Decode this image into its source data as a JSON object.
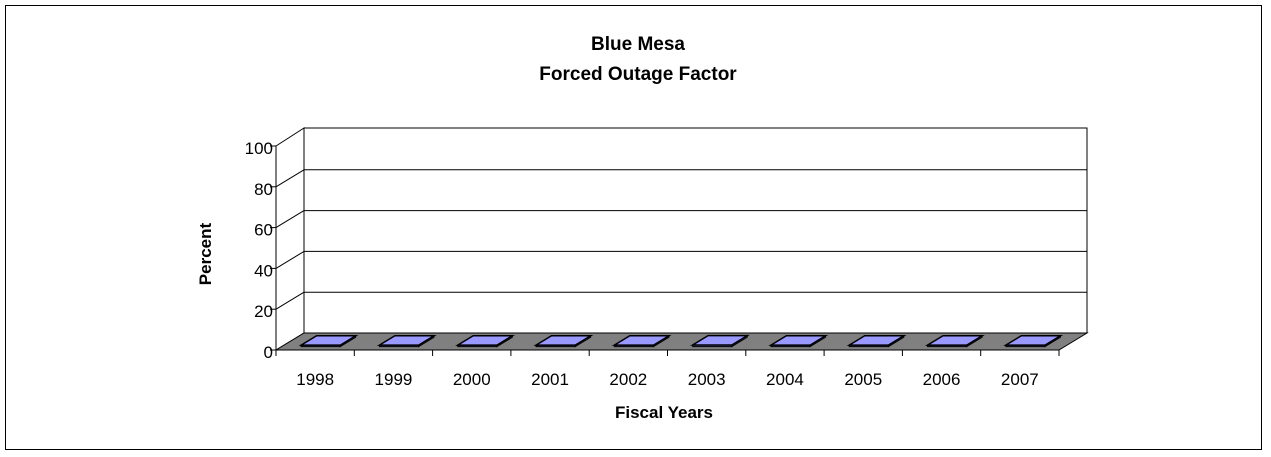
{
  "chart_data": {
    "type": "bar",
    "title_lines": [
      "Blue Mesa",
      "Forced Outage Factor"
    ],
    "xlabel": "Fiscal Years",
    "ylabel": "Percent",
    "categories": [
      "1998",
      "1999",
      "2000",
      "2001",
      "2002",
      "2003",
      "2004",
      "2005",
      "2006",
      "2007"
    ],
    "series": [
      {
        "values": [
          0.2,
          0.2,
          0.2,
          0.2,
          0.2,
          0.8,
          0.3,
          0.3,
          0.2,
          0.2
        ]
      }
    ],
    "ylim": [
      0,
      100
    ],
    "yticks": [
      "0",
      "20",
      "40",
      "60",
      "80",
      "100"
    ],
    "grid": true,
    "legend": "none",
    "three_d": true,
    "colors": {
      "bar_face": "#9999FF",
      "bar_side": "#5C5CB8",
      "floor": "#808080",
      "frame": "#000000",
      "background": "#FFFFFF"
    }
  }
}
